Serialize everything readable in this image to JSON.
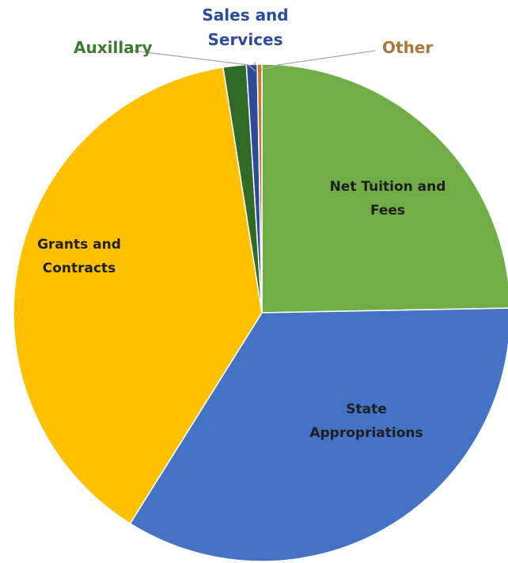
{
  "chart_data": {
    "type": "pie",
    "title": "",
    "slices": [
      {
        "label": [
          "Net Tuition and",
          "Fees"
        ],
        "value": 24.7,
        "color": "#70ad47",
        "label_color": "#1f1f1f",
        "placement": "inside"
      },
      {
        "label": [
          "State",
          "Appropriations"
        ],
        "value": 34.2,
        "color": "#4472c4",
        "label_color": "#1f1f1f",
        "placement": "inside"
      },
      {
        "label": [
          "Grants and",
          "Contracts"
        ],
        "value": 38.6,
        "color": "#ffc000",
        "label_color": "#1f1f1f",
        "placement": "inside"
      },
      {
        "label": [
          "Auxillary"
        ],
        "value": 1.5,
        "color": "#2f6b26",
        "label_color": "#3d7a32",
        "placement": "outside"
      },
      {
        "label": [
          "Sales and",
          "Services"
        ],
        "value": 0.7,
        "color": "#2f4a99",
        "label_color": "#2f4a99",
        "placement": "outside"
      },
      {
        "label": [
          "Other"
        ],
        "value": 0.3,
        "color": "#c27d32",
        "label_color": "#a8773a",
        "placement": "outside"
      }
    ]
  }
}
